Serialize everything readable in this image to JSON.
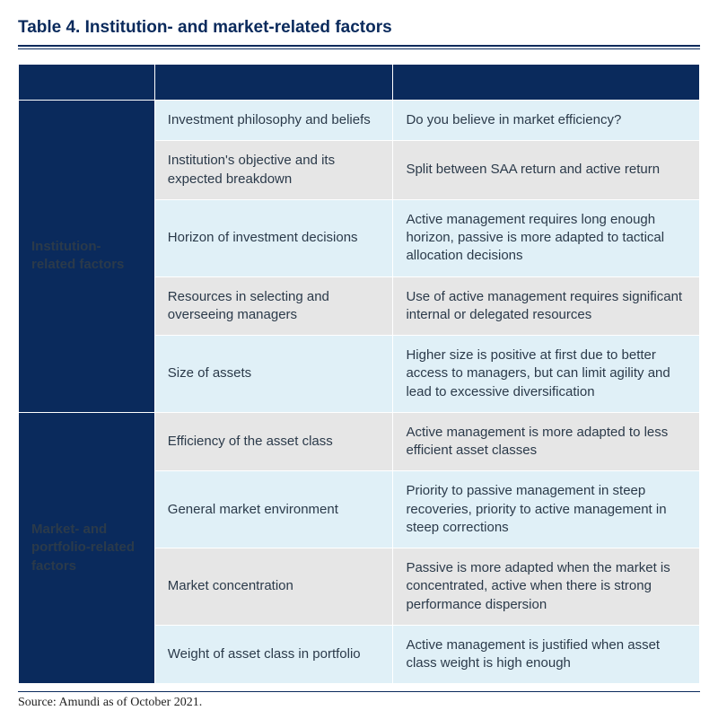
{
  "title": "Table 4. Institution- and market-related factors",
  "source": "Source: Amundi as of October 2021.",
  "colors": {
    "navy": "#0a2a5c",
    "lightblue": "#e0f0f7",
    "gray": "#e6e6e6",
    "text": "#2b3a4a"
  },
  "sections": [
    {
      "header": "Institution-related factors",
      "rows": [
        {
          "factor": "Investment philosophy and beliefs",
          "desc": "Do you believe in market efficiency?",
          "bg": "#e0f0f7"
        },
        {
          "factor": "Institution's objective and its expected breakdown",
          "desc": "Split between SAA return and active return",
          "bg": "#e6e6e6"
        },
        {
          "factor": "Horizon of investment decisions",
          "desc": "Active management requires long enough horizon, passive is more adapted to tactical allocation decisions",
          "bg": "#e0f0f7"
        },
        {
          "factor": "Resources in selecting and overseeing managers",
          "desc": "Use of active management requires significant internal or delegated resources",
          "bg": "#e6e6e6"
        },
        {
          "factor": "Size of assets",
          "desc": "Higher size is positive at first due to better access to managers, but can limit agility and lead to excessive diversification",
          "bg": "#e0f0f7"
        }
      ]
    },
    {
      "header": "Market- and portfolio-related factors",
      "rows": [
        {
          "factor": "Efficiency of the asset class",
          "desc": "Active management is more adapted to less efficient asset classes",
          "bg": "#e6e6e6"
        },
        {
          "factor": "General market environment",
          "desc": "Priority to passive management in steep recoveries, priority to active management in steep corrections",
          "bg": "#e0f0f7"
        },
        {
          "factor": "Market concentration",
          "desc": "Passive is more adapted when the market is concentrated, active when there is strong performance dispersion",
          "bg": "#e6e6e6"
        },
        {
          "factor": "Weight of asset class in portfolio",
          "desc": "Active management is justified when asset class weight is high enough",
          "bg": "#e0f0f7"
        }
      ]
    }
  ]
}
